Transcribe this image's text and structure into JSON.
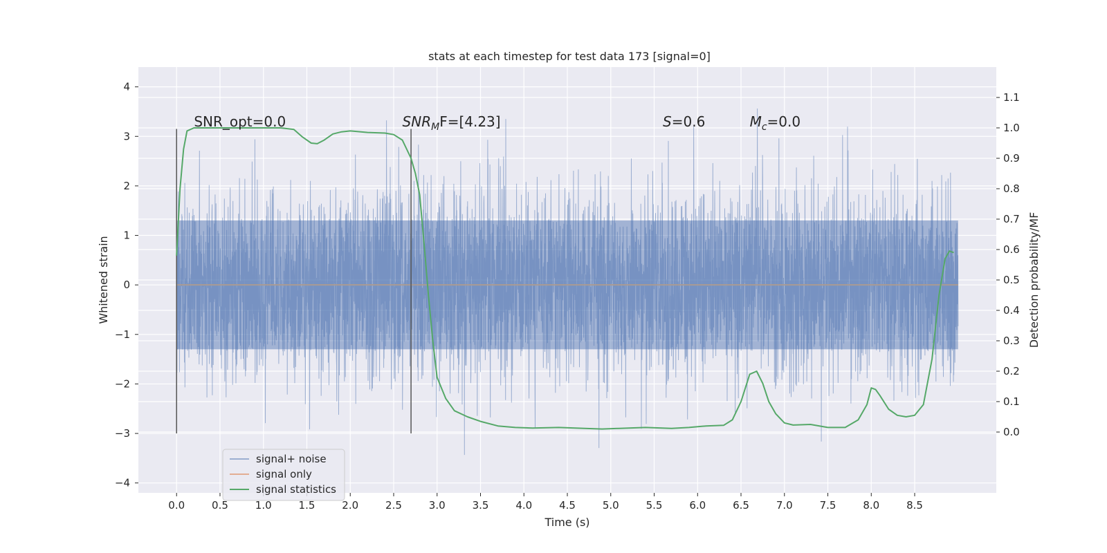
{
  "chart_data": {
    "type": "line",
    "title": "stats at each timestep for test data 173 [signal=0]",
    "xlabel": "Time (s)",
    "ylabel": "Whitened strain",
    "ylabel_right": "Detection probability/MF",
    "xlim": [
      -0.44,
      9.44
    ],
    "ylim": [
      -4.2,
      4.4
    ],
    "ylim_right": [
      -0.2,
      1.2
    ],
    "x_ticks": [
      "0.0",
      "0.5",
      "1.0",
      "1.5",
      "2.0",
      "2.5",
      "3.0",
      "3.5",
      "4.0",
      "4.5",
      "5.0",
      "5.5",
      "6.0",
      "6.5",
      "7.0",
      "7.5",
      "8.0",
      "8.5"
    ],
    "y_ticks": [
      "−4",
      "−3",
      "−2",
      "−1",
      "0",
      "1",
      "2",
      "3",
      "4"
    ],
    "y_ticks_right": [
      "0.0",
      "0.1",
      "0.2",
      "0.3",
      "0.4",
      "0.5",
      "0.6",
      "0.7",
      "0.8",
      "0.9",
      "1.0",
      "1.1"
    ],
    "grid": true,
    "legend_position": "lower-left",
    "annotations": [
      {
        "text": "SNR_opt=0.0",
        "x": 0.2,
        "y": 3.2
      },
      {
        "text_main": "SNR",
        "text_sub": "M",
        "text_rest": "F=[4.23]",
        "x": 2.6,
        "y": 3.2
      },
      {
        "text_main": "S",
        "text_rest": "=0.6",
        "x": 5.6,
        "y": 3.2
      },
      {
        "text_main": "M",
        "text_sub": "c",
        "text_rest": "=0.0",
        "x": 6.6,
        "y": 3.2
      }
    ],
    "vlines": [
      {
        "x": 0.0,
        "ymin": -3.0,
        "ymax": 3.15
      },
      {
        "x": 2.7,
        "ymin": -3.0,
        "ymax": 3.15
      }
    ],
    "series": [
      {
        "name": "signal+ noise",
        "color": "#4c72b0",
        "axis": "left",
        "x_range": [
          0.0,
          9.0
        ],
        "typical_amplitude": 1.8,
        "peak_max": 4.0,
        "peak_min": -3.9
      },
      {
        "name": "signal only",
        "color": "#dd8452",
        "axis": "left",
        "x": [
          0.0,
          9.0
        ],
        "y": [
          0.0,
          0.0
        ]
      },
      {
        "name": "signal statistics",
        "color": "#55a868",
        "axis": "right",
        "x": [
          0.0,
          0.04,
          0.08,
          0.12,
          0.2,
          0.3,
          0.4,
          0.6,
          0.8,
          1.0,
          1.2,
          1.35,
          1.45,
          1.55,
          1.62,
          1.7,
          1.8,
          1.9,
          2.0,
          2.2,
          2.4,
          2.5,
          2.6,
          2.7,
          2.75,
          2.8,
          2.85,
          2.9,
          2.95,
          3.0,
          3.1,
          3.2,
          3.35,
          3.5,
          3.7,
          3.9,
          4.1,
          4.4,
          4.7,
          4.9,
          5.1,
          5.4,
          5.7,
          5.9,
          6.1,
          6.3,
          6.4,
          6.5,
          6.6,
          6.68,
          6.75,
          6.82,
          6.9,
          7.0,
          7.1,
          7.3,
          7.5,
          7.7,
          7.85,
          7.95,
          8.0,
          8.05,
          8.1,
          8.2,
          8.3,
          8.4,
          8.5,
          8.6,
          8.7,
          8.78,
          8.85,
          8.9,
          8.95
        ],
        "y": [
          0.58,
          0.8,
          0.93,
          0.99,
          1.0,
          1.0,
          1.0,
          1.0,
          1.0,
          1.0,
          1.0,
          0.995,
          0.97,
          0.95,
          0.948,
          0.96,
          0.98,
          0.987,
          0.99,
          0.985,
          0.983,
          0.978,
          0.96,
          0.9,
          0.85,
          0.78,
          0.62,
          0.45,
          0.3,
          0.18,
          0.11,
          0.07,
          0.05,
          0.035,
          0.02,
          0.015,
          0.013,
          0.015,
          0.012,
          0.01,
          0.012,
          0.015,
          0.012,
          0.015,
          0.02,
          0.022,
          0.04,
          0.1,
          0.19,
          0.2,
          0.16,
          0.1,
          0.06,
          0.03,
          0.023,
          0.025,
          0.015,
          0.015,
          0.04,
          0.09,
          0.145,
          0.14,
          0.12,
          0.075,
          0.055,
          0.05,
          0.055,
          0.09,
          0.24,
          0.45,
          0.57,
          0.595,
          0.59
        ]
      }
    ]
  }
}
